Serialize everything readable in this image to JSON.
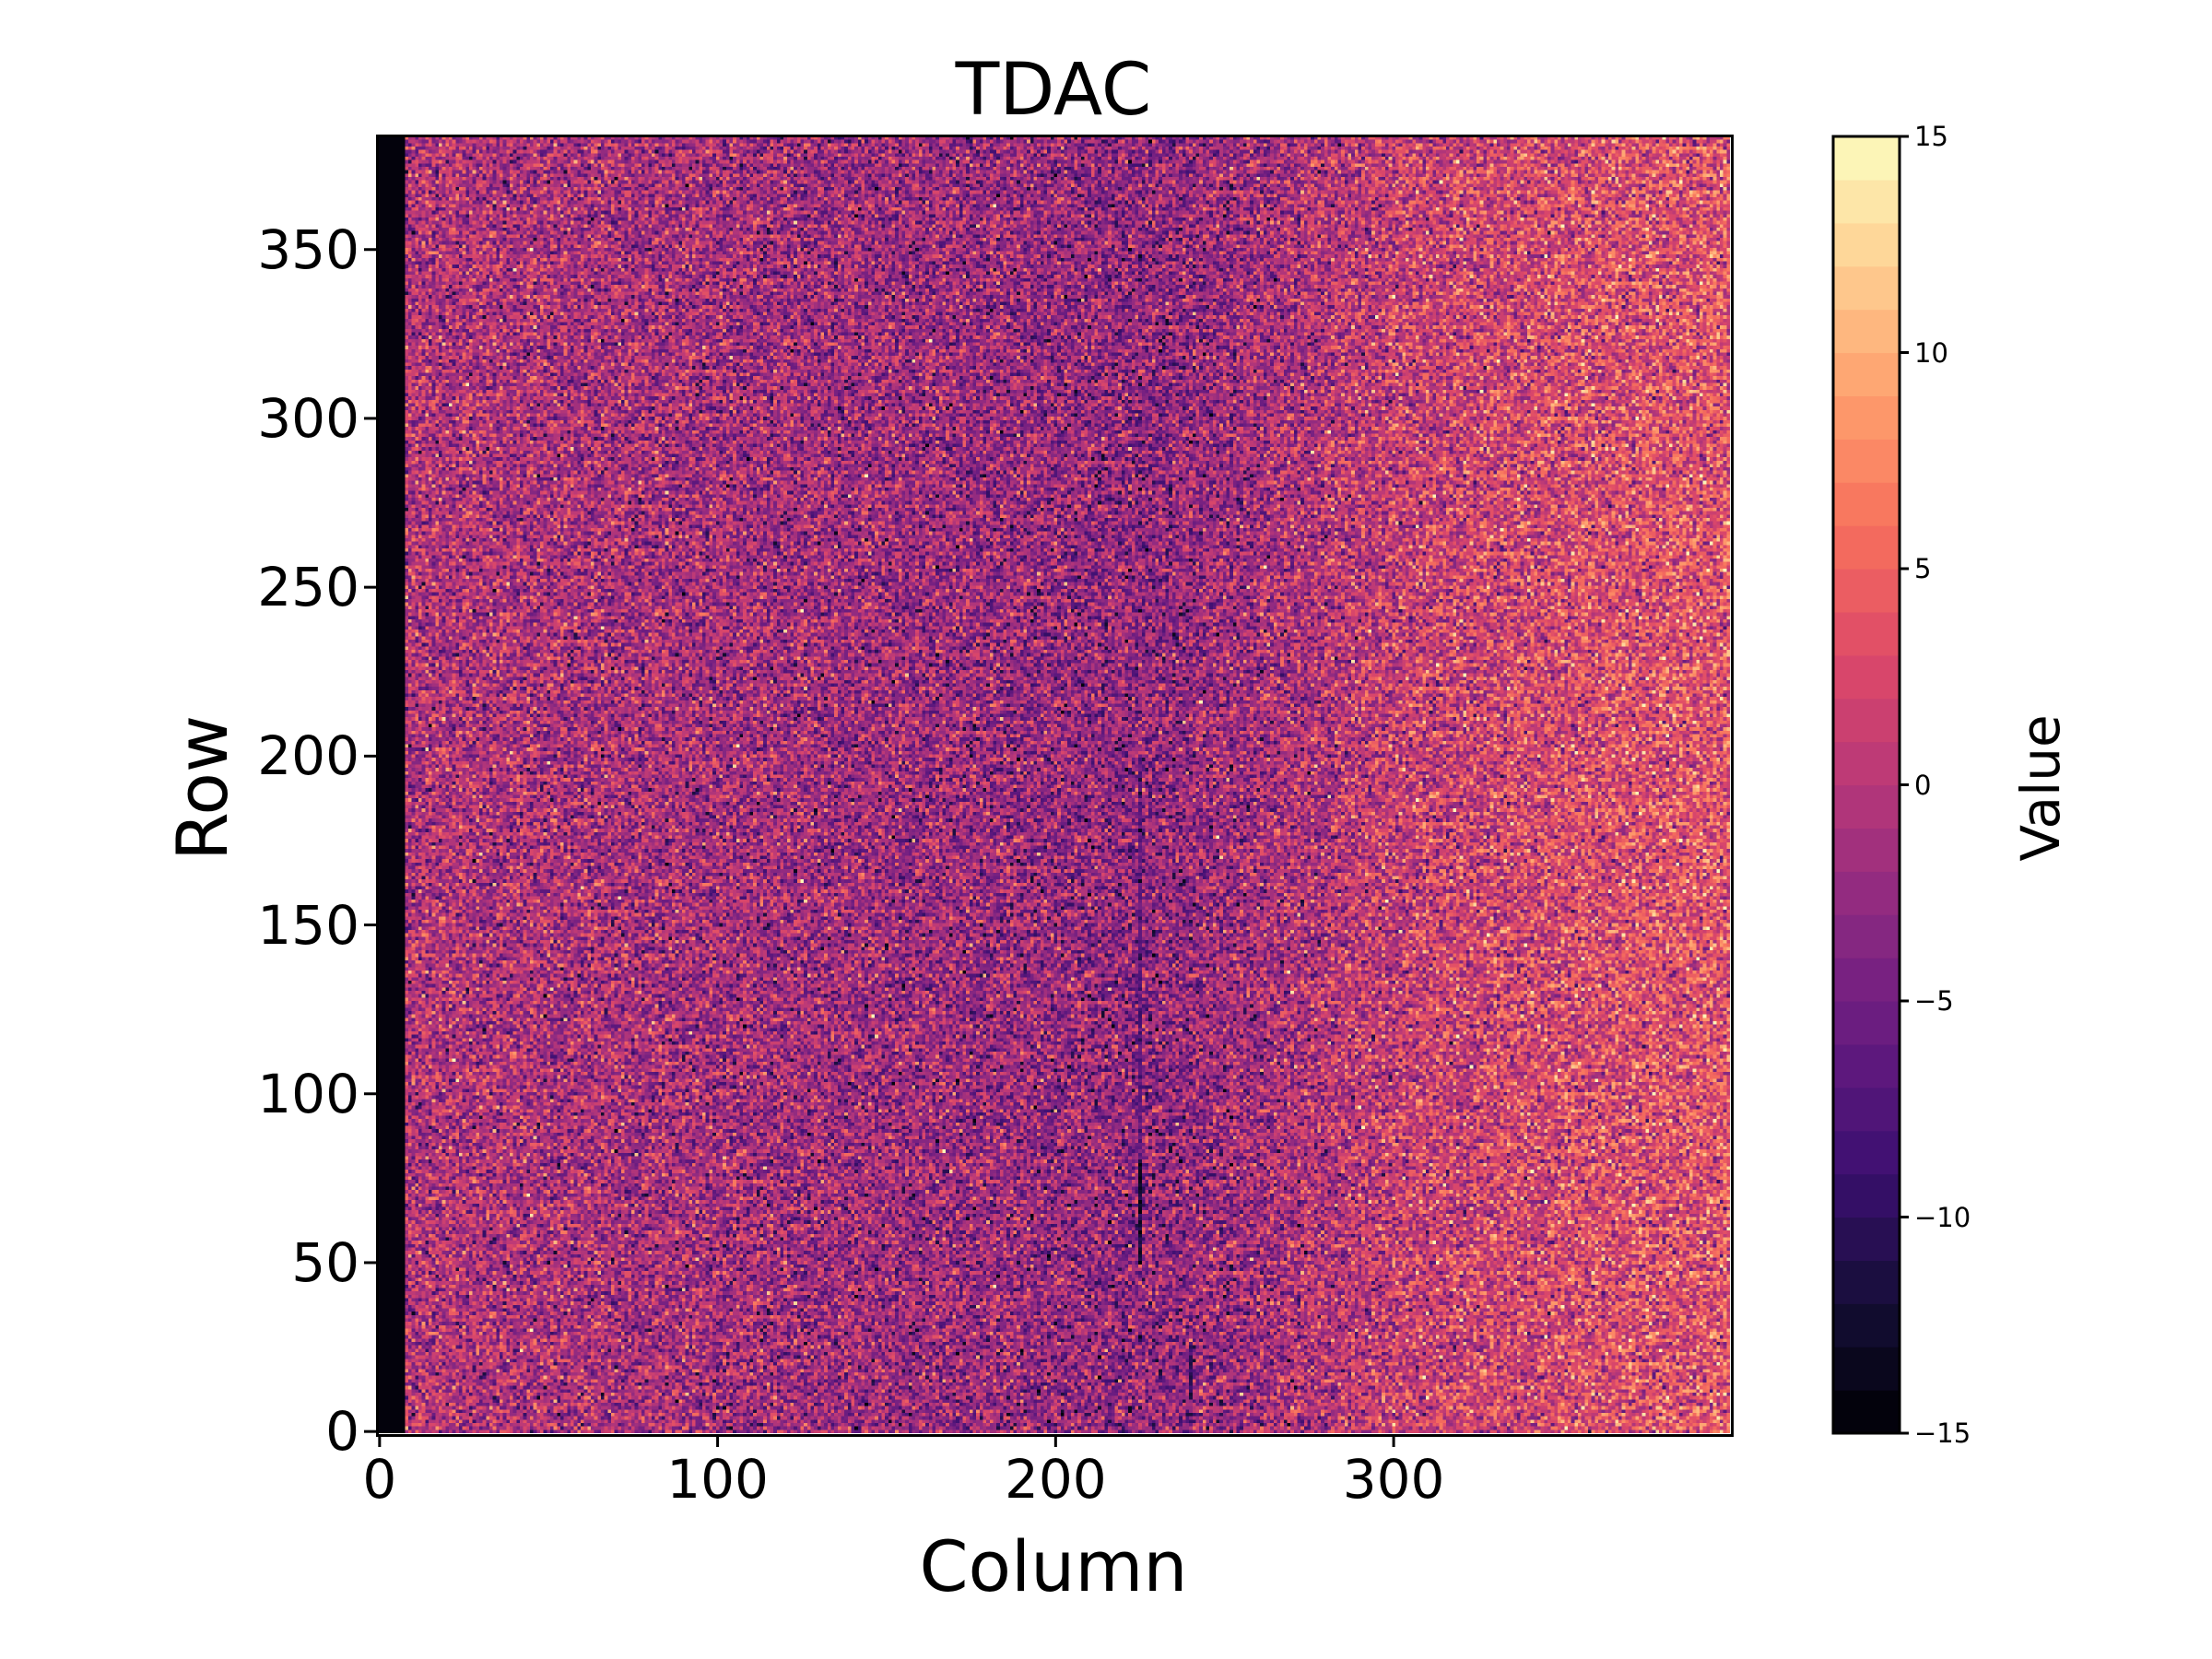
{
  "chart_data": {
    "type": "heatmap",
    "title": "TDAC",
    "xlabel": "Column",
    "ylabel": "Row",
    "n_columns": 400,
    "n_rows": 384,
    "xlim": [
      -0.5,
      399.5
    ],
    "ylim": [
      -0.5,
      383.5
    ],
    "x_ticks": [
      0,
      100,
      200,
      300
    ],
    "y_ticks": [
      0,
      50,
      100,
      150,
      200,
      250,
      300,
      350
    ],
    "colormap": "magma",
    "colorbar": {
      "label": "Value",
      "vmin": -15,
      "vmax": 15,
      "levels": 30,
      "ticks": [
        -15,
        -10,
        -5,
        0,
        5,
        10,
        15
      ],
      "tick_labels": [
        "−15",
        "−10",
        "−5",
        "0",
        "5",
        "10",
        "15"
      ]
    },
    "masked_columns": [
      0,
      7
    ],
    "masked_value": -15,
    "column_mean_profile": {
      "columns": [
        8,
        50,
        100,
        150,
        200,
        230,
        260,
        300,
        350,
        399
      ],
      "mean": [
        -1.0,
        -1.5,
        -2.0,
        -2.5,
        -3.0,
        -3.5,
        -2.0,
        0.5,
        2.0,
        3.0
      ]
    },
    "noise_std": 4.0,
    "features": [
      {
        "type": "dark-streak",
        "column": 225,
        "rows": [
          50,
          80
        ],
        "value": -13
      },
      {
        "type": "dark-streak",
        "column": 240,
        "rows": [
          10,
          25
        ],
        "value": -11
      },
      {
        "type": "dark-streak",
        "column": 225,
        "rows": [
          80,
          200
        ],
        "value": -7
      }
    ]
  }
}
